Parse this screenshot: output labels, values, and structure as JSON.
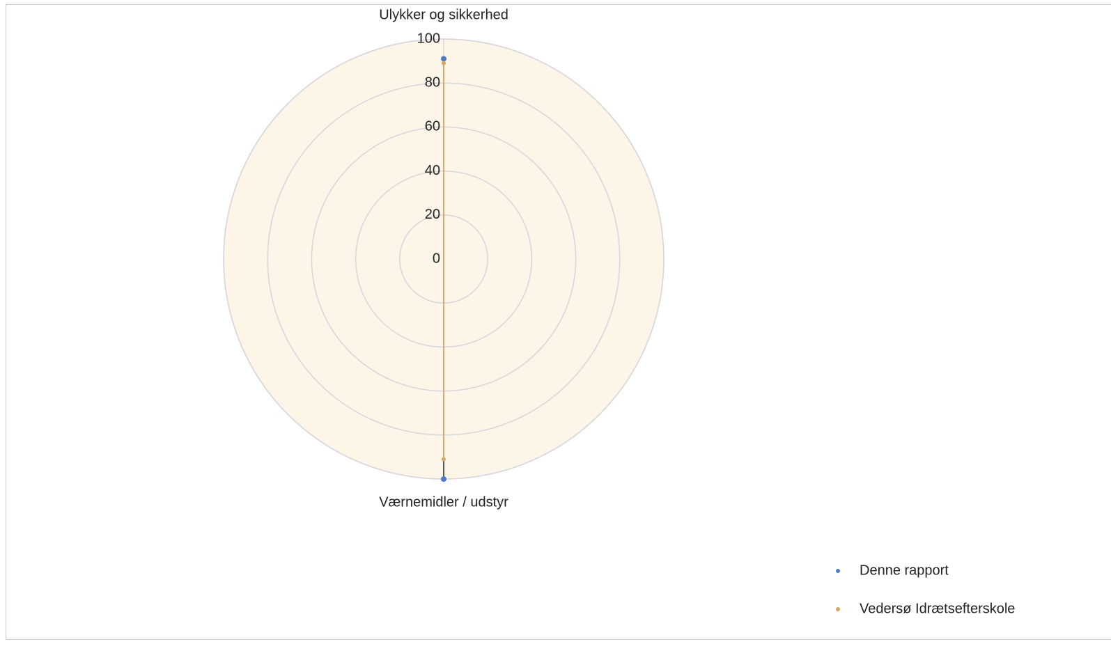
{
  "chart_data": {
    "type": "radar",
    "categories": [
      "Ulykker og sikkerhed",
      "Værnemidler / udstyr"
    ],
    "series": [
      {
        "name": "Denne rapport",
        "color": "#4f7ac7",
        "values": [
          91,
          100
        ]
      },
      {
        "name": "Vedersø Idrætsefterskole",
        "color": "#d4a86a",
        "values": [
          89,
          91
        ]
      }
    ],
    "ylim": [
      0,
      100
    ],
    "yticks": [
      0,
      20,
      40,
      60,
      80,
      100
    ],
    "grid": true,
    "legend": "bottom-right"
  }
}
